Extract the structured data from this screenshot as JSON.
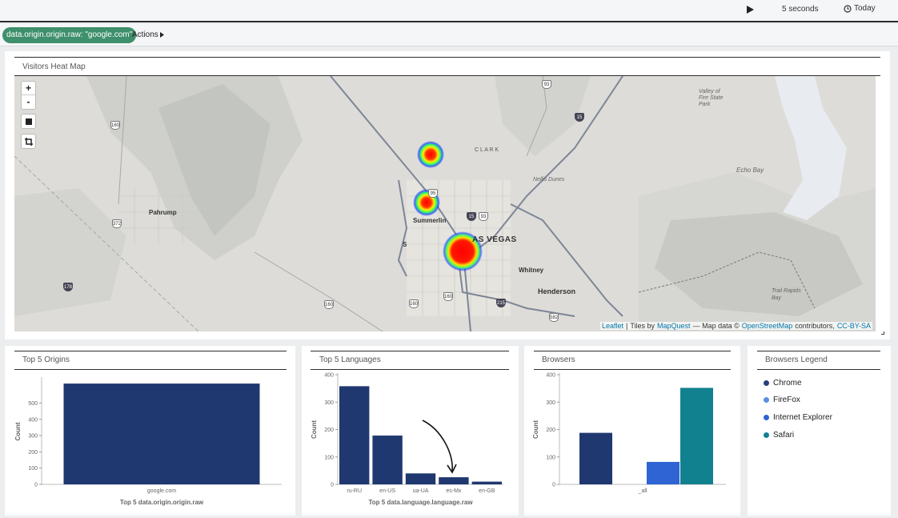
{
  "topbar": {
    "refresh_interval": "5 seconds",
    "time_range": "Today"
  },
  "filterbar": {
    "filter": "data.origin.origin.raw: \"google.com\"",
    "actions_label": "Actions"
  },
  "map_panel": {
    "title": "Visitors Heat Map",
    "zoom_in": "+",
    "zoom_out": "-",
    "labels": {
      "clark": "C L A R K",
      "nellis": "Nellis Dunes",
      "valley_of_fire": "Valley of Fire State Park",
      "echo_bay": "Echo Bay",
      "pahrump": "Pahrump",
      "summerlin": "Summerlin",
      "las_vegas": "AS VEGAS",
      "whitney": "Whitney",
      "henderson": "Henderson",
      "trail_rapids": "Trail Rapids Bay",
      "s": "S"
    },
    "shields": {
      "r93": "93",
      "r15a": "15",
      "r160a": "160",
      "r372": "372",
      "r178": "178",
      "r95": "95",
      "r15b": "15",
      "r93b": "93",
      "r160b": "160",
      "r160c": "160",
      "r160d": "160",
      "r215": "215",
      "r582": "582"
    },
    "attribution": {
      "leaflet": "Leaflet",
      "sep": "|",
      "tiles_by": "Tiles by",
      "mapquest": "MapQuest",
      "map_data": "— Map data ©",
      "osm": "OpenStreetMap",
      "contributors": "contributors,",
      "license": "CC-BY-SA"
    }
  },
  "panels": {
    "origins_title": "Top 5 Origins",
    "languages_title": "Top 5 Languages",
    "browsers_title": "Browsers",
    "legend_title": "Browsers Legend"
  },
  "legend": {
    "items": [
      {
        "label": "Chrome",
        "color": "#2b3f7e"
      },
      {
        "label": "FireFox",
        "color": "#5b8fe0"
      },
      {
        "label": "Internet Explorer",
        "color": "#2e64d3"
      },
      {
        "label": "Safari",
        "color": "#12818f"
      }
    ]
  },
  "chart_data": [
    {
      "type": "bar",
      "categories": [
        "google.com"
      ],
      "values": [
        620
      ],
      "xlabel": "Top 5 data.origin.origin.raw",
      "ylabel": "Count",
      "ylim": [
        0,
        650
      ],
      "yticks": [
        0,
        100,
        200,
        300,
        400,
        500
      ],
      "colors": [
        "#203870"
      ]
    },
    {
      "type": "bar",
      "categories": [
        "ru-RU",
        "en-US",
        "ua-UA",
        "es-Mx",
        "en-GB"
      ],
      "values": [
        358,
        178,
        40,
        26,
        10
      ],
      "xlabel": "Top 5 data.language.language.raw",
      "ylabel": "Count",
      "ylim": [
        0,
        400
      ],
      "yticks": [
        0,
        100,
        200,
        300,
        400
      ],
      "colors": [
        "#203870"
      ]
    },
    {
      "type": "bar",
      "categories": [
        "_all"
      ],
      "series": [
        {
          "name": "Chrome",
          "values": [
            188
          ]
        },
        {
          "name": "FireFox",
          "values": [
            0
          ]
        },
        {
          "name": "Internet Explorer",
          "values": [
            82
          ]
        },
        {
          "name": "Safari",
          "values": [
            352
          ]
        }
      ],
      "xlabel": "",
      "ylabel": "Count",
      "ylim": [
        0,
        400
      ],
      "yticks": [
        0,
        100,
        200,
        300,
        400
      ],
      "colors": [
        "#203870",
        "#5b8fe0",
        "#2e64d3",
        "#12818f"
      ]
    }
  ]
}
